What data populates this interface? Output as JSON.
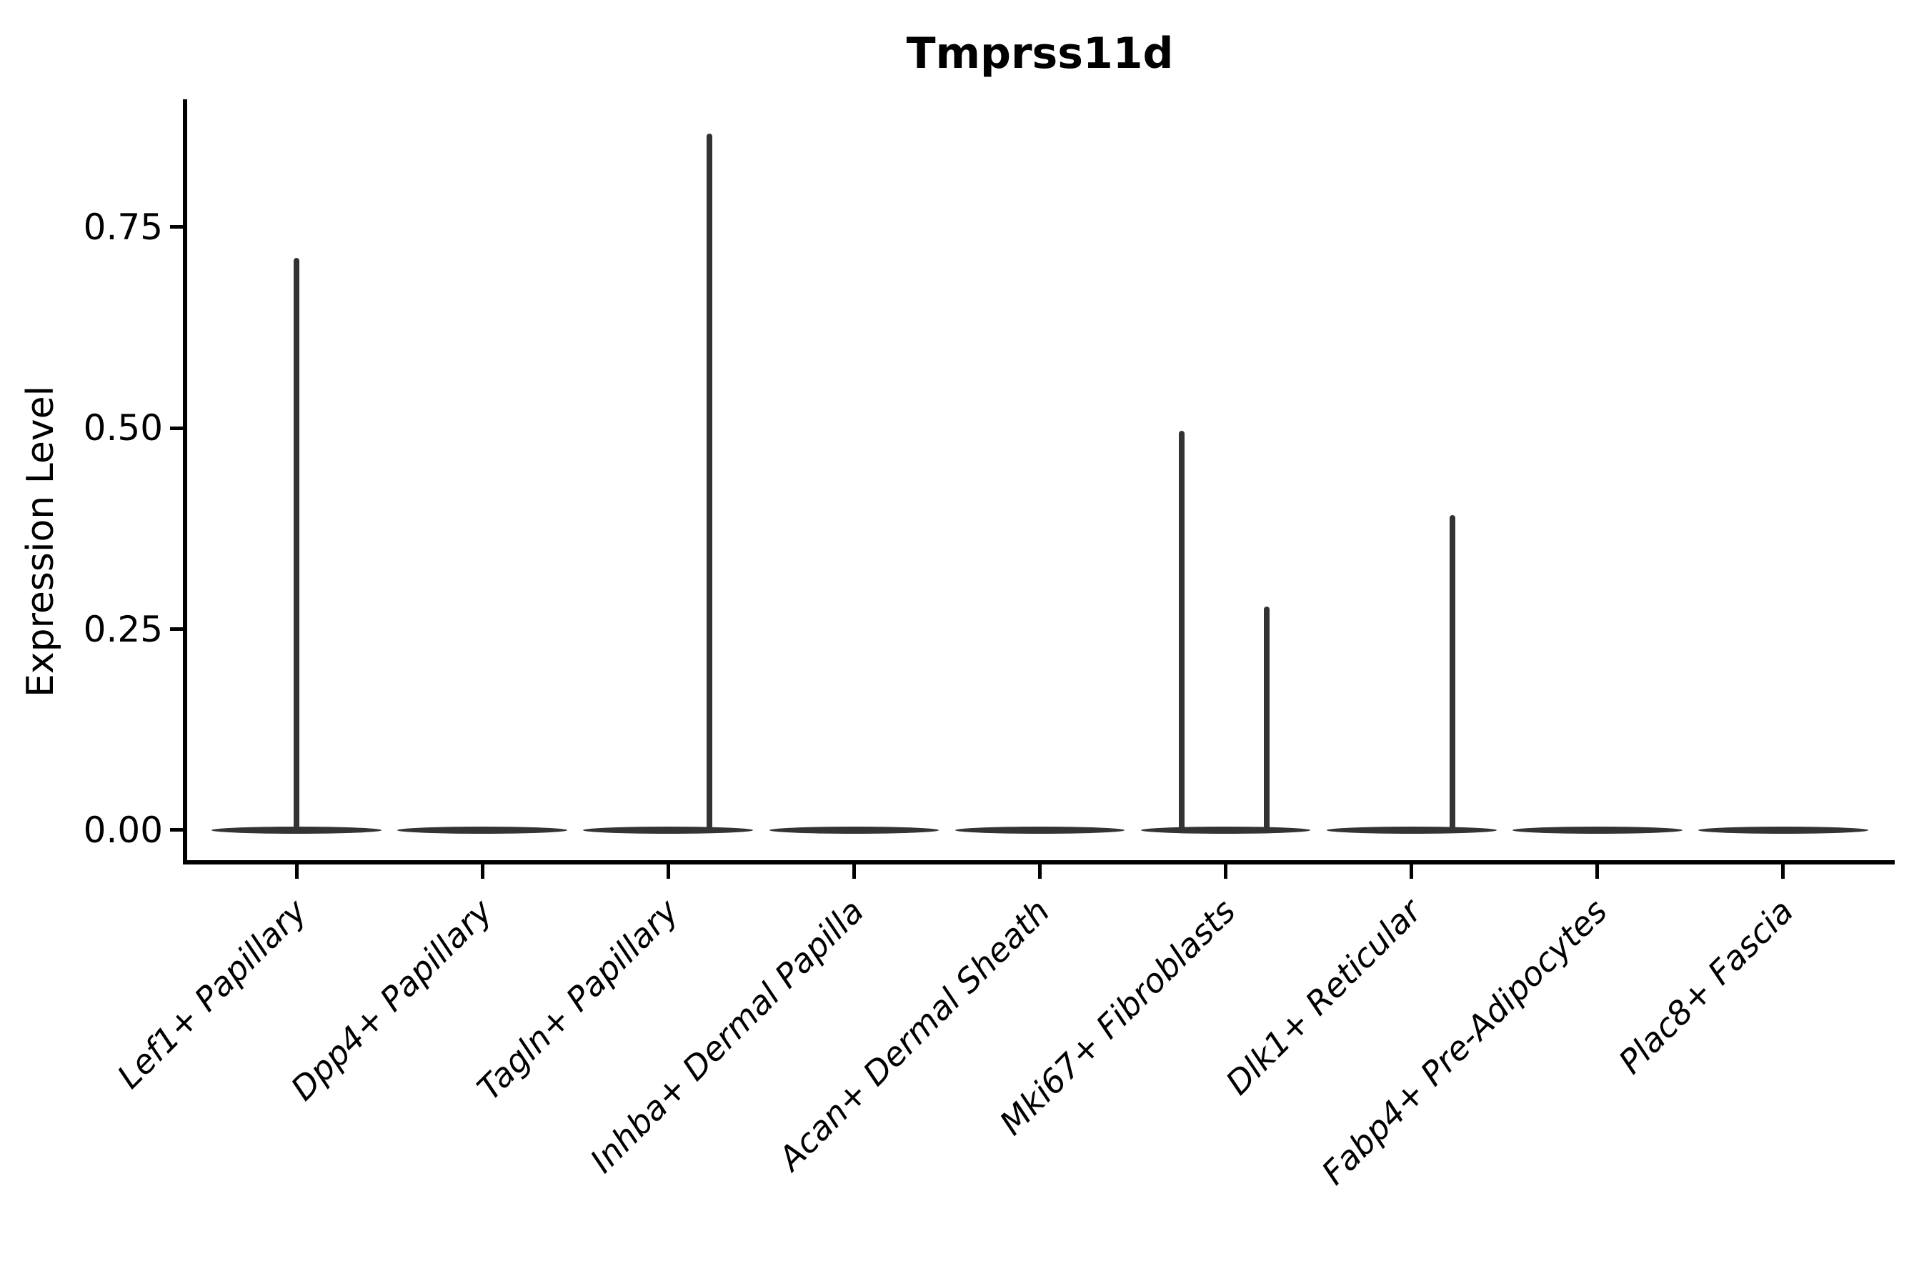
{
  "chart_data": {
    "type": "violin",
    "title": "Tmprss11d",
    "ylabel": "Expression Level",
    "xlabel": "",
    "legend": "none",
    "grid": false,
    "ylim": [
      -0.04,
      0.909
    ],
    "ytick_values": [
      0,
      0.25,
      0.5,
      0.75
    ],
    "ytick_labels": [
      "0.00",
      "0.25",
      "0.50",
      "0.75"
    ],
    "categories": [
      "Lef1+ Papillary",
      "Dpp4+ Papillary",
      "Tagln+ Papillary",
      "Inhba+ Dermal Papilla",
      "Acan+ Dermal Sheath",
      "Mki67+ Fibroblasts",
      "Dlk1+ Reticular",
      "Fabp4+ Pre-Adipocytes",
      "Plac8+ Fascia"
    ],
    "violins": [
      {
        "category": "Lef1+ Papillary",
        "base_value": 0,
        "spikes": [
          {
            "offset_units": 0.0,
            "value": 0.71
          }
        ]
      },
      {
        "category": "Dpp4+ Papillary",
        "base_value": 0,
        "spikes": []
      },
      {
        "category": "Tagln+ Papillary",
        "base_value": 0,
        "spikes": [
          {
            "offset_units": 0.22,
            "value": 0.865
          }
        ]
      },
      {
        "category": "Inhba+ Dermal Papilla",
        "base_value": 0,
        "spikes": []
      },
      {
        "category": "Acan+ Dermal Sheath",
        "base_value": 0,
        "spikes": []
      },
      {
        "category": "Mki67+ Fibroblasts",
        "base_value": 0,
        "spikes": [
          {
            "offset_units": -0.235,
            "value": 0.495
          },
          {
            "offset_units": 0.22,
            "value": 0.276
          }
        ]
      },
      {
        "category": "Dlk1+ Reticular",
        "base_value": 0,
        "spikes": [
          {
            "offset_units": 0.22,
            "value": 0.39
          }
        ]
      },
      {
        "category": "Fabp4+ Pre-Adipocytes",
        "base_value": 0,
        "spikes": []
      },
      {
        "category": "Plac8+ Fascia",
        "base_value": 0,
        "spikes": []
      }
    ],
    "base_halfwidth_units": 0.457,
    "colors": {
      "violin": "#333333",
      "axis": "#000000",
      "text": "#000000",
      "background": "#ffffff"
    }
  }
}
